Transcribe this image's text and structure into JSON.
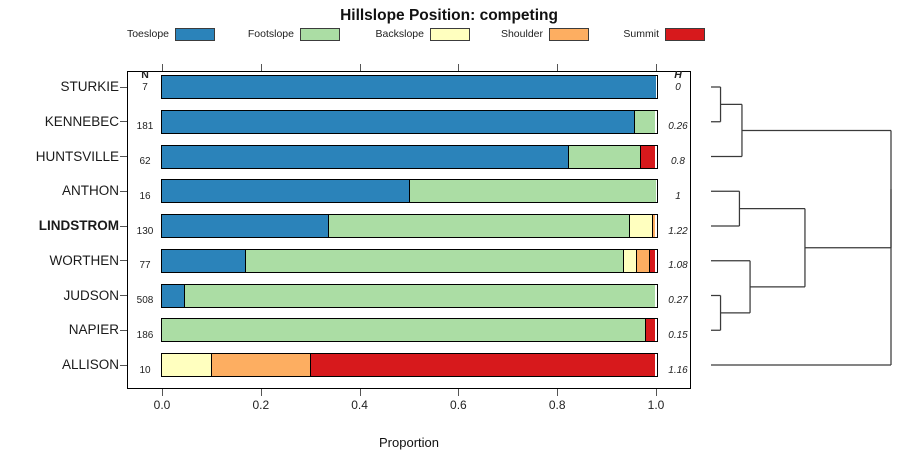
{
  "title": "Hillslope Position: competing",
  "legend": {
    "items": [
      {
        "label": "Toeslope",
        "color": "#2B83BA"
      },
      {
        "label": "Footslope",
        "color": "#ABDDA4"
      },
      {
        "label": "Backslope",
        "color": "#FFFFBF"
      },
      {
        "label": "Shoulder",
        "color": "#FDAE61"
      },
      {
        "label": "Summit",
        "color": "#D7191C"
      }
    ]
  },
  "chart_data": {
    "type": "bar",
    "stacked": true,
    "orientation": "horizontal",
    "title": "Hillslope Position: competing",
    "xlabel": "Proportion",
    "xlim": [
      0,
      1
    ],
    "grid": false,
    "n_header": "N",
    "h_header": "H",
    "x_ticks": [
      {
        "v": 0.0,
        "label": "0.0"
      },
      {
        "v": 0.2,
        "label": "0.2"
      },
      {
        "v": 0.4,
        "label": "0.4"
      },
      {
        "v": 0.6,
        "label": "0.6"
      },
      {
        "v": 0.8,
        "label": "0.8"
      },
      {
        "v": 1.0,
        "label": "1.0"
      }
    ],
    "series_names": [
      "Toeslope",
      "Footslope",
      "Backslope",
      "Shoulder",
      "Summit"
    ],
    "colors": {
      "Toeslope": "#2B83BA",
      "Footslope": "#ABDDA4",
      "Backslope": "#FFFFBF",
      "Shoulder": "#FDAE61",
      "Summit": "#D7191C"
    },
    "rows": [
      {
        "name": "STURKIE",
        "n": "7",
        "h": "0",
        "bold": false,
        "segments": [
          {
            "label": "Toeslope",
            "p": 1.0
          }
        ]
      },
      {
        "name": "KENNEBEC",
        "n": "181",
        "h": "0.26",
        "bold": false,
        "segments": [
          {
            "label": "Toeslope",
            "p": 0.956
          },
          {
            "label": "Footslope",
            "p": 0.044
          }
        ]
      },
      {
        "name": "HUNTSVILLE",
        "n": "62",
        "h": "0.8",
        "bold": false,
        "segments": [
          {
            "label": "Toeslope",
            "p": 0.823
          },
          {
            "label": "Footslope",
            "p": 0.145
          },
          {
            "label": "Summit",
            "p": 0.032
          }
        ]
      },
      {
        "name": "ANTHON",
        "n": "16",
        "h": "1",
        "bold": false,
        "segments": [
          {
            "label": "Toeslope",
            "p": 0.5
          },
          {
            "label": "Footslope",
            "p": 0.5
          }
        ]
      },
      {
        "name": "LINDSTROM",
        "n": "130",
        "h": "1.22",
        "bold": true,
        "segments": [
          {
            "label": "Toeslope",
            "p": 0.338
          },
          {
            "label": "Footslope",
            "p": 0.608
          },
          {
            "label": "Backslope",
            "p": 0.046
          },
          {
            "label": "Shoulder",
            "p": 0.008
          }
        ]
      },
      {
        "name": "WORTHEN",
        "n": "77",
        "h": "1.08",
        "bold": false,
        "segments": [
          {
            "label": "Toeslope",
            "p": 0.169
          },
          {
            "label": "Footslope",
            "p": 0.766
          },
          {
            "label": "Backslope",
            "p": 0.026
          },
          {
            "label": "Shoulder",
            "p": 0.026
          },
          {
            "label": "Summit",
            "p": 0.013
          }
        ]
      },
      {
        "name": "JUDSON",
        "n": "508",
        "h": "0.27",
        "bold": false,
        "segments": [
          {
            "label": "Toeslope",
            "p": 0.045
          },
          {
            "label": "Footslope",
            "p": 0.955
          }
        ]
      },
      {
        "name": "NAPIER",
        "n": "186",
        "h": "0.15",
        "bold": false,
        "segments": [
          {
            "label": "Footslope",
            "p": 0.978
          },
          {
            "label": "Summit",
            "p": 0.022
          }
        ]
      },
      {
        "name": "ALLISON",
        "n": "10",
        "h": "1.16",
        "bold": false,
        "segments": [
          {
            "label": "Backslope",
            "p": 0.1
          },
          {
            "label": "Shoulder",
            "p": 0.2
          },
          {
            "label": "Summit",
            "p": 0.7
          }
        ]
      }
    ],
    "dendrogram": {
      "leaves": [
        "STURKIE",
        "KENNEBEC",
        "HUNTSVILLE",
        "ANTHON",
        "LINDSTROM",
        "WORTHEN",
        "JUDSON",
        "NAPIER",
        "ALLISON"
      ],
      "merges": [
        {
          "id": "m1",
          "a": "STURKIE",
          "b": "KENNEBEC",
          "h": 0.053
        },
        {
          "id": "m2",
          "a": "m1",
          "b": "HUNTSVILLE",
          "h": 0.172
        },
        {
          "id": "m3",
          "a": "ANTHON",
          "b": "LINDSTROM",
          "h": 0.158
        },
        {
          "id": "m4",
          "a": "JUDSON",
          "b": "NAPIER",
          "h": 0.053
        },
        {
          "id": "m5",
          "a": "WORTHEN",
          "b": "m4",
          "h": 0.217
        },
        {
          "id": "m6",
          "a": "m3",
          "b": "m5",
          "h": 0.522
        },
        {
          "id": "m7",
          "a": "m2",
          "b": "m6",
          "h": 1.0
        },
        {
          "id": "m8",
          "a": "m7",
          "b": "ALLISON",
          "h": 1.0
        }
      ]
    }
  }
}
